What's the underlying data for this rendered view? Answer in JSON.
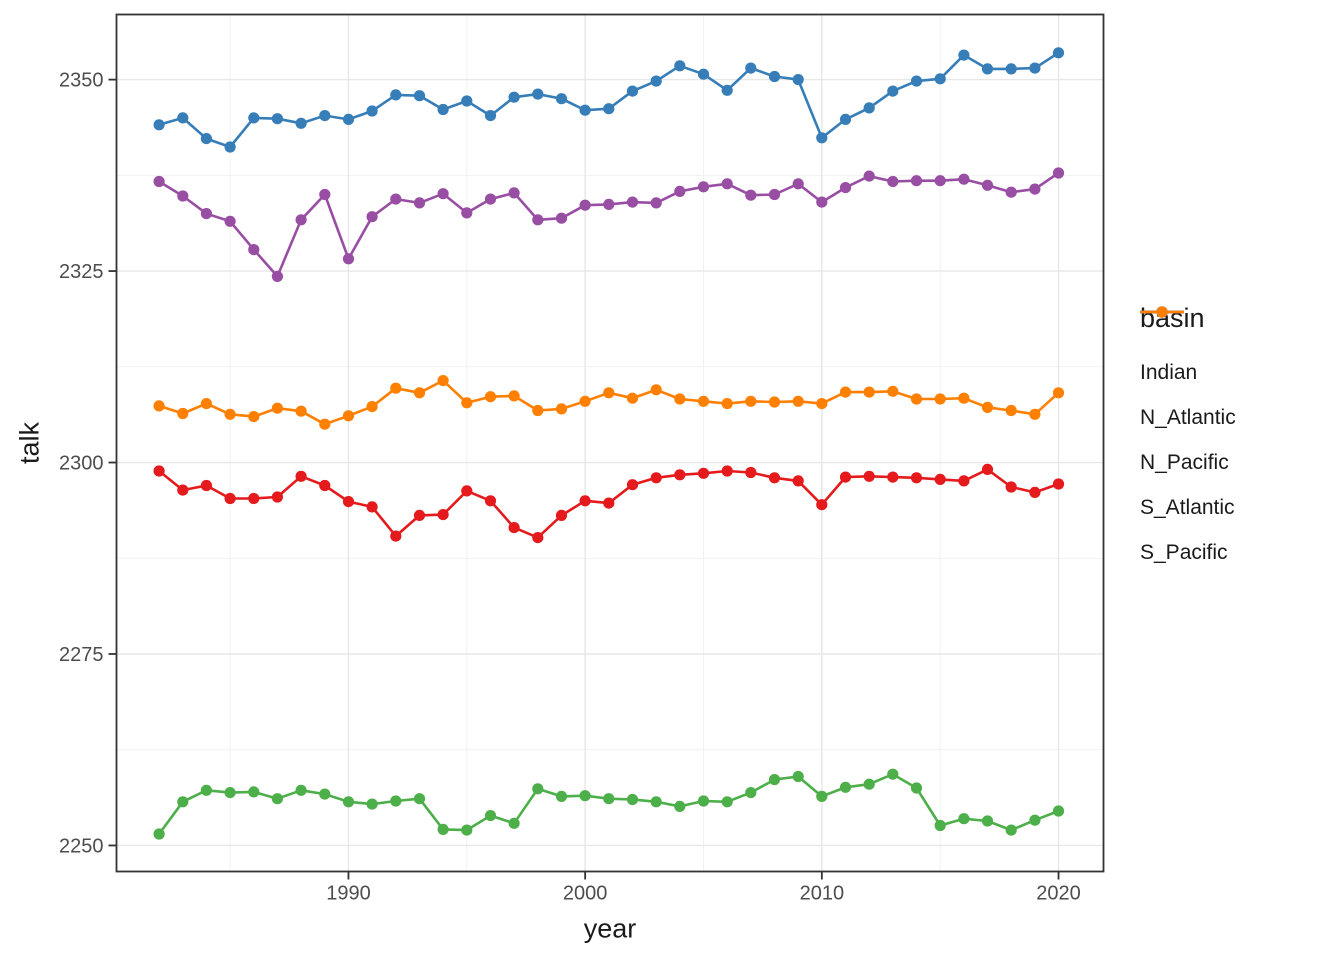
{
  "figure": {
    "background": "#ffffff"
  },
  "chart_data": {
    "type": "line",
    "title": "",
    "xlabel": "year",
    "ylabel": "talk",
    "legend_title": "basin",
    "legend_position": "right",
    "grid": true,
    "marker": "point",
    "xlim": [
      1980.2,
      2021.9
    ],
    "ylim": [
      2246.6,
      2358.5
    ],
    "xticks": [
      1990,
      2000,
      2010,
      2020
    ],
    "xticks_minor": [
      1985,
      1995,
      2005,
      2015
    ],
    "yticks": [
      2250,
      2275,
      2300,
      2325,
      2350
    ],
    "yticks_minor": [
      2262.5,
      2287.5,
      2312.5,
      2337.5
    ],
    "x": [
      1982,
      1983,
      1984,
      1985,
      1986,
      1987,
      1988,
      1989,
      1990,
      1991,
      1992,
      1993,
      1994,
      1995,
      1996,
      1997,
      1998,
      1999,
      2000,
      2001,
      2002,
      2003,
      2004,
      2005,
      2006,
      2007,
      2008,
      2009,
      2010,
      2011,
      2012,
      2013,
      2014,
      2015,
      2016,
      2017,
      2018,
      2019,
      2020
    ],
    "series": [
      {
        "name": "Indian",
        "color": "#E41A1C",
        "values": [
          2298.9,
          2296.4,
          2297.0,
          2295.3,
          2295.3,
          2295.5,
          2298.2,
          2297.0,
          2294.9,
          2294.2,
          2290.4,
          2293.1,
          2293.2,
          2296.3,
          2295.0,
          2291.5,
          2290.2,
          2293.1,
          2295.0,
          2294.7,
          2297.1,
          2298.0,
          2298.4,
          2298.6,
          2298.9,
          2298.7,
          2298.0,
          2297.6,
          2294.5,
          2298.1,
          2298.2,
          2298.1,
          2298.0,
          2297.8,
          2297.6,
          2299.1,
          2296.8,
          2296.1,
          2297.2
        ]
      },
      {
        "name": "N_Atlantic",
        "color": "#377EB8",
        "values": [
          2344.1,
          2345.0,
          2342.3,
          2341.2,
          2345.0,
          2344.9,
          2344.3,
          2345.3,
          2344.8,
          2345.9,
          2348.0,
          2347.9,
          2346.1,
          2347.2,
          2345.3,
          2347.7,
          2348.1,
          2347.5,
          2346.0,
          2346.2,
          2348.5,
          2349.8,
          2351.8,
          2350.7,
          2348.6,
          2351.5,
          2350.4,
          2350.0,
          2342.4,
          2344.8,
          2346.3,
          2348.5,
          2349.8,
          2350.1,
          2353.2,
          2351.4,
          2351.4,
          2351.5,
          2353.5
        ]
      },
      {
        "name": "N_Pacific",
        "color": "#4DAF4A",
        "values": [
          2251.5,
          2255.7,
          2257.2,
          2256.9,
          2257.0,
          2256.1,
          2257.2,
          2256.7,
          2255.7,
          2255.4,
          2255.8,
          2256.1,
          2252.1,
          2252.0,
          2253.9,
          2252.9,
          2257.4,
          2256.4,
          2256.5,
          2256.1,
          2256.0,
          2255.7,
          2255.1,
          2255.8,
          2255.7,
          2256.9,
          2258.6,
          2259.0,
          2256.4,
          2257.6,
          2258.0,
          2259.3,
          2257.5,
          2252.6,
          2253.5,
          2253.2,
          2252.0,
          2253.3,
          2254.5
        ]
      },
      {
        "name": "S_Atlantic",
        "color": "#984EA3",
        "values": [
          2336.7,
          2334.8,
          2332.5,
          2331.5,
          2327.8,
          2324.3,
          2331.7,
          2335.0,
          2326.6,
          2332.1,
          2334.4,
          2333.9,
          2335.1,
          2332.6,
          2334.4,
          2335.2,
          2331.7,
          2331.9,
          2333.6,
          2333.7,
          2334.0,
          2333.9,
          2335.4,
          2336.0,
          2336.4,
          2334.9,
          2335.0,
          2336.4,
          2334.0,
          2335.9,
          2337.4,
          2336.7,
          2336.8,
          2336.8,
          2337.0,
          2336.2,
          2335.3,
          2335.7,
          2337.8
        ]
      },
      {
        "name": "S_Pacific",
        "color": "#FF7F00",
        "values": [
          2307.4,
          2306.4,
          2307.7,
          2306.3,
          2306.0,
          2307.1,
          2306.7,
          2305.0,
          2306.1,
          2307.3,
          2309.7,
          2309.1,
          2310.7,
          2307.8,
          2308.6,
          2308.7,
          2306.8,
          2307.0,
          2308.0,
          2309.1,
          2308.4,
          2309.5,
          2308.3,
          2308.0,
          2307.7,
          2308.0,
          2307.9,
          2308.0,
          2307.7,
          2309.2,
          2309.2,
          2309.3,
          2308.3,
          2308.3,
          2308.4,
          2307.2,
          2306.8,
          2306.3,
          2309.1
        ]
      }
    ],
    "style": {
      "axis_text_color": "#4d4d4d",
      "axis_title_color": "#1a1a1a",
      "panel_border_color": "#333333",
      "grid_major_color": "#e7e7e7",
      "grid_minor_color": "#f2f2f2",
      "line_width": 2.6,
      "point_radius": 5.6
    }
  }
}
